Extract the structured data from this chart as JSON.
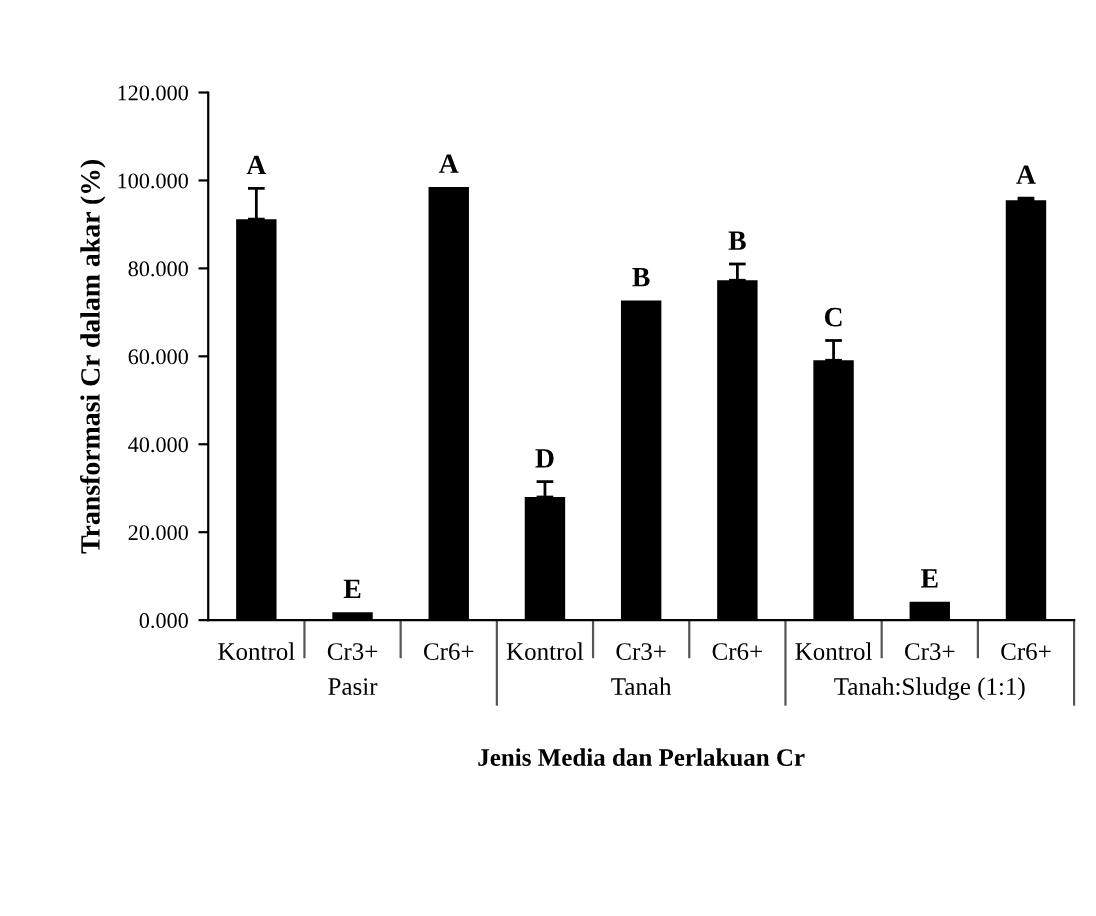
{
  "chart_data": {
    "type": "bar",
    "ylabel": "Transformasi Cr dalam akar (%)",
    "xlabel": "Jenis Media dan Perlakuan Cr",
    "categories": [
      "Kontrol",
      "Cr3+",
      "Cr6+",
      "Kontrol",
      "Cr3+",
      "Cr6+",
      "Kontrol",
      "Cr3+",
      "Cr6+"
    ],
    "values": [
      91.2,
      1.8,
      98.5,
      28.0,
      72.7,
      77.3,
      59.1,
      4.2,
      95.5
    ],
    "errors": [
      7.0,
      null,
      null,
      3.5,
      null,
      3.7,
      4.5,
      null,
      0.5
    ],
    "value_labels": [
      "A",
      "E",
      "A",
      "D",
      "B",
      "B",
      "C",
      "E",
      "A"
    ],
    "color": "#000000",
    "annotations": [
      "Pasir",
      "Tanah",
      "Tanah:Sludge (1:1)"
    ],
    "ylim": [
      0,
      120
    ],
    "yticks": [
      {
        "value": 0,
        "label": "0.000"
      },
      {
        "value": 20,
        "label": "20.000"
      },
      {
        "value": 40,
        "label": "40.000"
      },
      {
        "value": 60,
        "label": "60.000"
      },
      {
        "value": 80,
        "label": "80.000"
      },
      {
        "value": 100,
        "label": "100.000"
      },
      {
        "value": 120,
        "label": "120.000"
      }
    ],
    "grid": false,
    "legend": false
  }
}
